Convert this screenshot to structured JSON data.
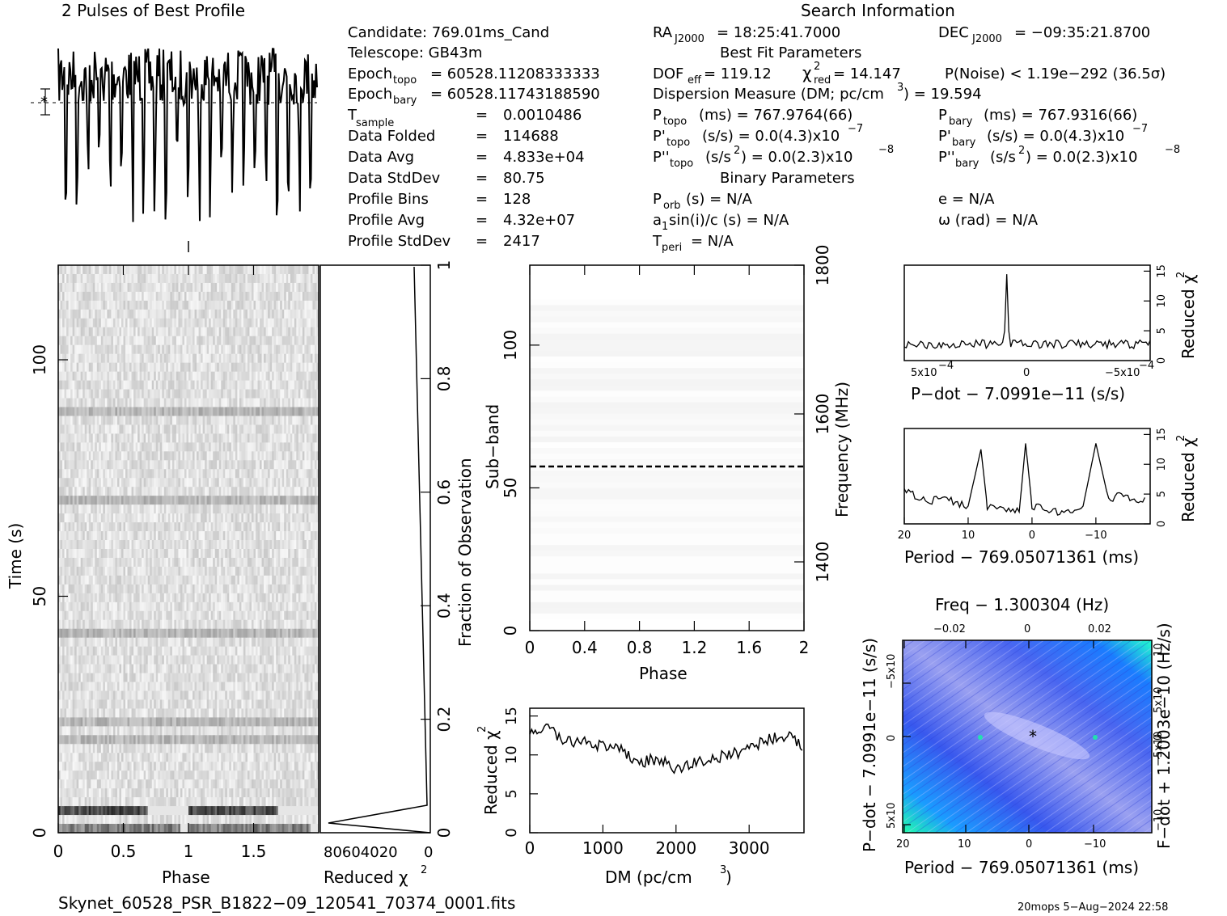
{
  "title_profile": "2 Pulses of Best Profile",
  "title_search": "Search Information",
  "candidate": {
    "lines": [
      "Candidate:  769.01ms_Cand",
      "Telescope:  GB43m"
    ],
    "epoch_topo": "= 60528.11208333333",
    "epoch_bary": "= 60528.11743188590",
    "rows": [
      {
        "label": "sample",
        "value": "0.0010486"
      },
      {
        "label": "Data Folded",
        "value": "114688"
      },
      {
        "label": "Data Avg",
        "value": "4.833e+04"
      },
      {
        "label": "Data StdDev",
        "value": "80.75"
      },
      {
        "label": "Profile Bins",
        "value": "128"
      },
      {
        "label": "Profile Avg",
        "value": "4.32e+07"
      },
      {
        "label": "Profile StdDev",
        "value": "2417"
      }
    ]
  },
  "search": {
    "ra": "= 18:25:41.7000",
    "dec": "= −09:35:21.8700",
    "best_fit_title": "Best Fit Parameters",
    "dof": "= 119.12",
    "chi2_red": "= 14.147",
    "pnoise": "P(Noise) < 1.19e−292   (36.5σ)",
    "dm": "Dispersion Measure (DM; pc/cm",
    "dm_value": ") = 19.594",
    "ptopo": "(ms) =  767.9764(66)",
    "pbary": "(ms) =  767.9316(66)",
    "pdot_topo": "(s/s) = 0.0(4.3)x10",
    "pdot_bary": "(s/s) = 0.0(4.3)x10",
    "pddot_topo": ") = 0.0(2.3)x10",
    "pddot_bary": ") = 0.0(2.3)x10",
    "binary_title": "Binary Parameters",
    "porb": "(s) = N/A",
    "e": "e = N/A",
    "a1": "sin(i)/c (s) = N/A",
    "omega": "ω (rad) = N/A",
    "tperi": "= N/A"
  },
  "footer": {
    "filename": "Skynet_60528_PSR_B1822−09_120541_70374_0001.fits",
    "stamp": "20mops  5−Aug−2024 22:58"
  },
  "chart_data": [
    {
      "type": "line",
      "title": "2 Pulses of Best Profile",
      "xlim": [
        0,
        2
      ],
      "note_pulse_count": 2
    },
    {
      "type": "heatmap",
      "name": "time-phase",
      "xlabel": "Phase",
      "ylabel": "Time (s)",
      "xlim": [
        0,
        2
      ],
      "ylim": [
        0,
        120
      ],
      "xticks": [
        0,
        0.5,
        1,
        1.5
      ],
      "yticks": [
        0,
        50,
        100
      ]
    },
    {
      "type": "line",
      "name": "reduced-chi2-vs-fraction",
      "xlabel": "Reduced χ",
      "ylabel": "Fraction of Observation",
      "xticks": [
        "80604020",
        "0"
      ],
      "yticks": [
        0,
        0.2,
        0.4,
        0.6,
        0.8,
        1
      ]
    },
    {
      "type": "heatmap",
      "name": "subband-phase",
      "xlabel": "Phase",
      "ylabel": "Sub−band",
      "ylabel_right": "Frequency (MHz)",
      "xlim": [
        0,
        2
      ],
      "ylim": [
        0,
        128
      ],
      "xticks": [
        0,
        0.4,
        0.8,
        1.2,
        1.6,
        2
      ],
      "yticks": [
        0,
        50,
        100
      ],
      "yticks_right": [
        1400,
        1600,
        1800
      ],
      "marked_subband": 58
    },
    {
      "type": "line",
      "name": "dm-curve",
      "xlabel": "DM (pc/cm",
      "ylabel": "Reduced χ",
      "xlim": [
        0,
        3750
      ],
      "ylim": [
        0,
        16
      ],
      "xticks": [
        0,
        1000,
        2000,
        3000
      ],
      "yticks": [
        0,
        5,
        10,
        15
      ],
      "x": [
        0,
        250,
        500,
        750,
        1000,
        1250,
        1500,
        1750,
        2000,
        2250,
        2500,
        2750,
        3000,
        3250,
        3500,
        3750
      ],
      "y": [
        13,
        13.5,
        11.5,
        12,
        11,
        10.5,
        9,
        9.5,
        8,
        9,
        9.5,
        10,
        11,
        12,
        12.5,
        11
      ]
    },
    {
      "type": "line",
      "name": "pdot-curve",
      "xlabel": "P−dot − 7.0991e−11 (s/s)",
      "ylabel": "Reduced χ",
      "xticks": [
        "5x10",
        "0",
        "−5x10"
      ],
      "yticks": [
        0,
        5,
        10,
        15
      ],
      "peak": 14.5
    },
    {
      "type": "line",
      "name": "period-curve",
      "xlabel": "Period − 769.05071361 (ms)",
      "ylabel": "Reduced χ",
      "xticks": [
        20,
        10,
        0,
        -10
      ],
      "yticks": [
        0,
        5,
        10,
        15
      ],
      "x": [
        20,
        18,
        16,
        14,
        12,
        10,
        8,
        7,
        4,
        2,
        1,
        0,
        -2,
        -4,
        -6,
        -8,
        -10,
        -12,
        -14,
        -16,
        -18
      ],
      "y": [
        6,
        4.5,
        3.5,
        5,
        3.5,
        3,
        12.5,
        3,
        2.5,
        2,
        13.5,
        3,
        2.5,
        2,
        2,
        3,
        13.5,
        4,
        5,
        4,
        4
      ]
    },
    {
      "type": "heatmap",
      "name": "period-pdot",
      "title": "Freq − 1.300304 (Hz)",
      "xlabel": "Period − 769.05071361 (ms)",
      "ylabel": "P−dot − 7.0991e−11 (s/s)",
      "ylabel_right": "F−dot + 1.2003e−10 (Hz/s)",
      "xticks": [
        20,
        10,
        0,
        -10
      ],
      "xticks_top": [
        -0.02,
        0,
        0.02
      ]
    }
  ]
}
